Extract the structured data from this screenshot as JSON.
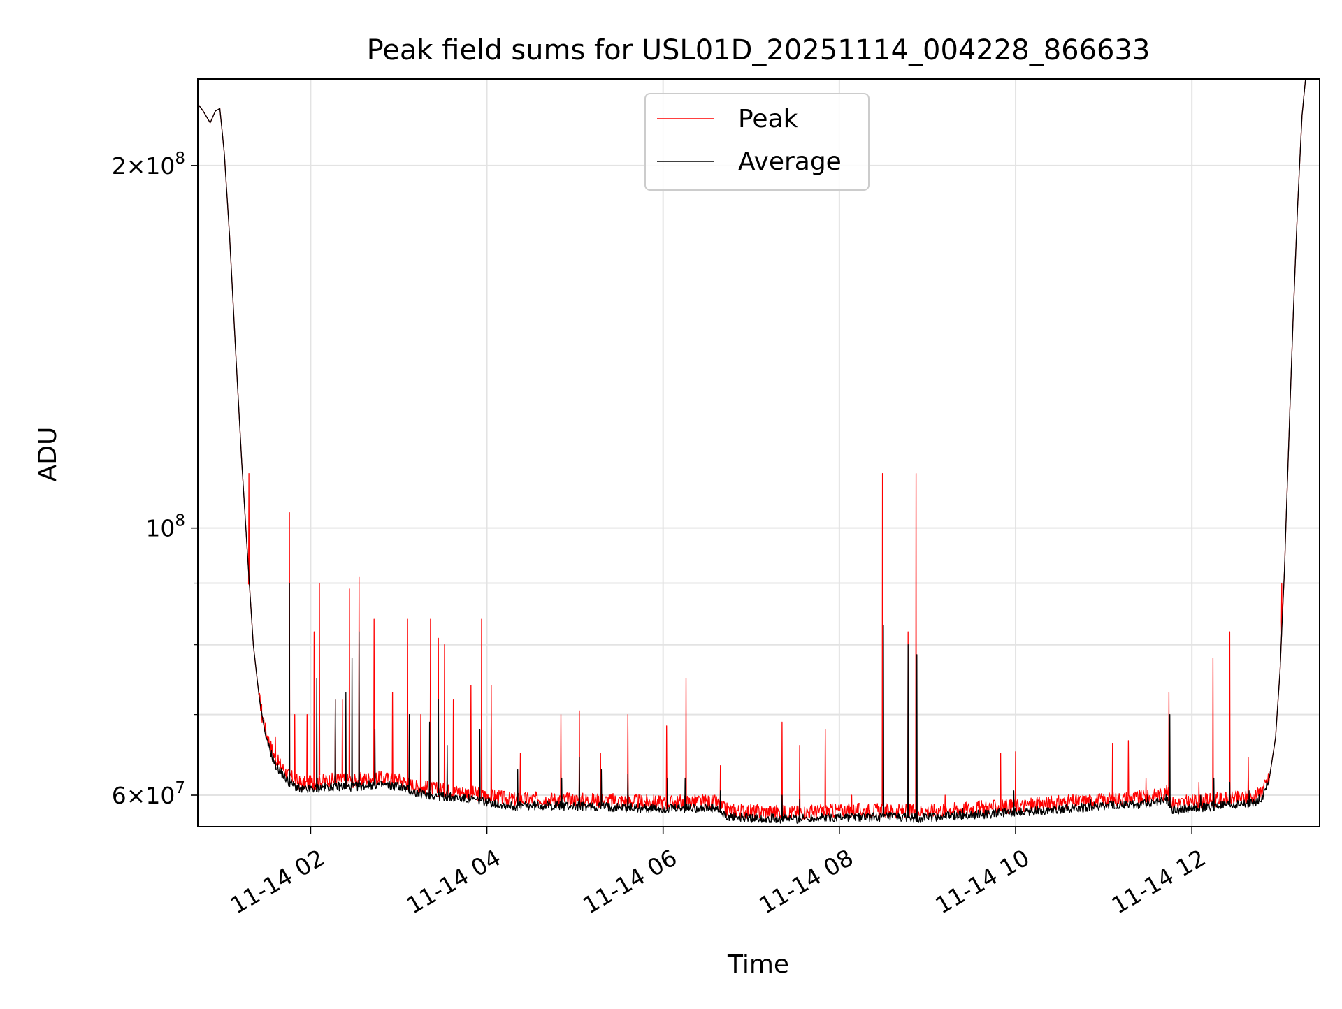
{
  "chart_data": {
    "type": "line",
    "title": "Peak field sums for USL01D_20251114_004228_866633",
    "xlabel": "Time",
    "ylabel": "ADU",
    "yscale": "log",
    "xlim": [
      0.72,
      13.45
    ],
    "ylim": [
      56500000,
      236000000
    ],
    "grid": true,
    "legend_position": "top-center",
    "x_ticks": [
      {
        "value": 2,
        "label": "11-14 02"
      },
      {
        "value": 4,
        "label": "11-14 04"
      },
      {
        "value": 6,
        "label": "11-14 06"
      },
      {
        "value": 8,
        "label": "11-14 08"
      },
      {
        "value": 10,
        "label": "11-14 10"
      },
      {
        "value": 12,
        "label": "11-14 12"
      }
    ],
    "y_ticks": [
      {
        "value": 60000000,
        "base": "6",
        "exp": "7",
        "mantissa": true
      },
      {
        "value": 100000000,
        "base": "10",
        "exp": "8",
        "mantissa": false
      },
      {
        "value": 200000000,
        "base": "2",
        "exp": "8",
        "mantissa": true
      }
    ],
    "y_minor_ticks": [
      70000000,
      80000000,
      90000000
    ],
    "legend": [
      {
        "name": "Peak",
        "color": "#ff0000"
      },
      {
        "name": "Average",
        "color": "#000000"
      }
    ],
    "series": [
      {
        "name": "Average",
        "color": "#000000",
        "points": [
          [
            0.72,
            225000000
          ],
          [
            0.78,
            222000000
          ],
          [
            0.86,
            217000000
          ],
          [
            0.92,
            222000000
          ],
          [
            0.97,
            223000000
          ],
          [
            1.02,
            205000000
          ],
          [
            1.08,
            175000000
          ],
          [
            1.15,
            140000000
          ],
          [
            1.22,
            113000000
          ],
          [
            1.28,
            96000000
          ],
          [
            1.35,
            80000000
          ],
          [
            1.42,
            72000000
          ],
          [
            1.5,
            66500000
          ],
          [
            1.6,
            63500000
          ],
          [
            1.75,
            61500000
          ],
          [
            1.9,
            60500000
          ],
          [
            2.1,
            60800000
          ],
          [
            2.3,
            61000000
          ],
          [
            2.5,
            60900000
          ],
          [
            2.7,
            61200000
          ],
          [
            3.0,
            61000000
          ],
          [
            3.2,
            60200000
          ],
          [
            3.5,
            59800000
          ],
          [
            3.8,
            59500000
          ],
          [
            4.0,
            59200000
          ],
          [
            4.3,
            58700000
          ],
          [
            4.6,
            58800000
          ],
          [
            5.0,
            58700000
          ],
          [
            5.5,
            58600000
          ],
          [
            6.0,
            58400000
          ],
          [
            6.4,
            58500000
          ],
          [
            6.6,
            58400000
          ],
          [
            6.7,
            57600000
          ],
          [
            7.0,
            57400000
          ],
          [
            7.5,
            57300000
          ],
          [
            8.0,
            57500000
          ],
          [
            8.5,
            57500000
          ],
          [
            8.9,
            57400000
          ],
          [
            9.2,
            57600000
          ],
          [
            9.6,
            57800000
          ],
          [
            10.0,
            58000000
          ],
          [
            10.5,
            58400000
          ],
          [
            11.0,
            58700000
          ],
          [
            11.5,
            59000000
          ],
          [
            11.72,
            59500000
          ],
          [
            11.78,
            58300000
          ],
          [
            12.0,
            58500000
          ],
          [
            12.4,
            58800000
          ],
          [
            12.7,
            59000000
          ],
          [
            12.8,
            59800000
          ],
          [
            12.88,
            62000000
          ],
          [
            12.95,
            67000000
          ],
          [
            13.0,
            76000000
          ],
          [
            13.05,
            92000000
          ],
          [
            13.1,
            118000000
          ],
          [
            13.15,
            150000000
          ],
          [
            13.2,
            185000000
          ],
          [
            13.25,
            220000000
          ],
          [
            13.3,
            240000000
          ],
          [
            13.45,
            240000000
          ]
        ],
        "spikes": [
          [
            1.76,
            90000000
          ],
          [
            2.07,
            75000000
          ],
          [
            2.28,
            72000000
          ],
          [
            2.4,
            73000000
          ],
          [
            2.47,
            78000000
          ],
          [
            2.55,
            82000000
          ],
          [
            2.73,
            68000000
          ],
          [
            3.12,
            70000000
          ],
          [
            3.35,
            69000000
          ],
          [
            3.45,
            72000000
          ],
          [
            3.55,
            66000000
          ],
          [
            3.92,
            68000000
          ],
          [
            4.35,
            63000000
          ],
          [
            4.85,
            62000000
          ],
          [
            5.05,
            64500000
          ],
          [
            5.3,
            63000000
          ],
          [
            5.6,
            62500000
          ],
          [
            6.05,
            62000000
          ],
          [
            6.25,
            62000000
          ],
          [
            6.65,
            60500000
          ],
          [
            7.35,
            60000000
          ],
          [
            7.55,
            59500000
          ],
          [
            8.5,
            83000000
          ],
          [
            8.78,
            80000000
          ],
          [
            8.88,
            78500000
          ],
          [
            9.4,
            58500000
          ],
          [
            9.98,
            60500000
          ],
          [
            10.85,
            59500000
          ],
          [
            11.5,
            60000000
          ],
          [
            11.75,
            70000000
          ],
          [
            12.1,
            60000000
          ],
          [
            12.25,
            62000000
          ],
          [
            12.43,
            61500000
          ],
          [
            12.65,
            60500000
          ]
        ]
      },
      {
        "name": "Peak",
        "color": "#ff0000",
        "spikes": [
          [
            1.3,
            111000000
          ],
          [
            1.45,
            69000000
          ],
          [
            1.6,
            67000000
          ],
          [
            1.76,
            103000000
          ],
          [
            1.82,
            70000000
          ],
          [
            1.96,
            70000000
          ],
          [
            2.04,
            82000000
          ],
          [
            2.1,
            90000000
          ],
          [
            2.28,
            72000000
          ],
          [
            2.36,
            72000000
          ],
          [
            2.44,
            89000000
          ],
          [
            2.55,
            91000000
          ],
          [
            2.72,
            84000000
          ],
          [
            2.93,
            73000000
          ],
          [
            3.1,
            84000000
          ],
          [
            3.25,
            70000000
          ],
          [
            3.36,
            84000000
          ],
          [
            3.45,
            81000000
          ],
          [
            3.52,
            80000000
          ],
          [
            3.62,
            72000000
          ],
          [
            3.82,
            74000000
          ],
          [
            3.94,
            84000000
          ],
          [
            4.05,
            74000000
          ],
          [
            4.38,
            65000000
          ],
          [
            4.84,
            70000000
          ],
          [
            5.05,
            70500000
          ],
          [
            5.29,
            65000000
          ],
          [
            5.6,
            70000000
          ],
          [
            6.04,
            68500000
          ],
          [
            6.26,
            75000000
          ],
          [
            6.65,
            63500000
          ],
          [
            7.35,
            69000000
          ],
          [
            7.55,
            66000000
          ],
          [
            7.84,
            68000000
          ],
          [
            8.14,
            60000000
          ],
          [
            8.49,
            111000000
          ],
          [
            8.78,
            82000000
          ],
          [
            8.87,
            111000000
          ],
          [
            9.2,
            60000000
          ],
          [
            9.83,
            65000000
          ],
          [
            10.0,
            65200000
          ],
          [
            11.1,
            66200000
          ],
          [
            11.28,
            66600000
          ],
          [
            11.48,
            62000000
          ],
          [
            11.74,
            73000000
          ],
          [
            12.08,
            61500000
          ],
          [
            12.24,
            78000000
          ],
          [
            12.43,
            82000000
          ],
          [
            12.64,
            64500000
          ],
          [
            13.02,
            90000000
          ]
        ]
      }
    ]
  }
}
